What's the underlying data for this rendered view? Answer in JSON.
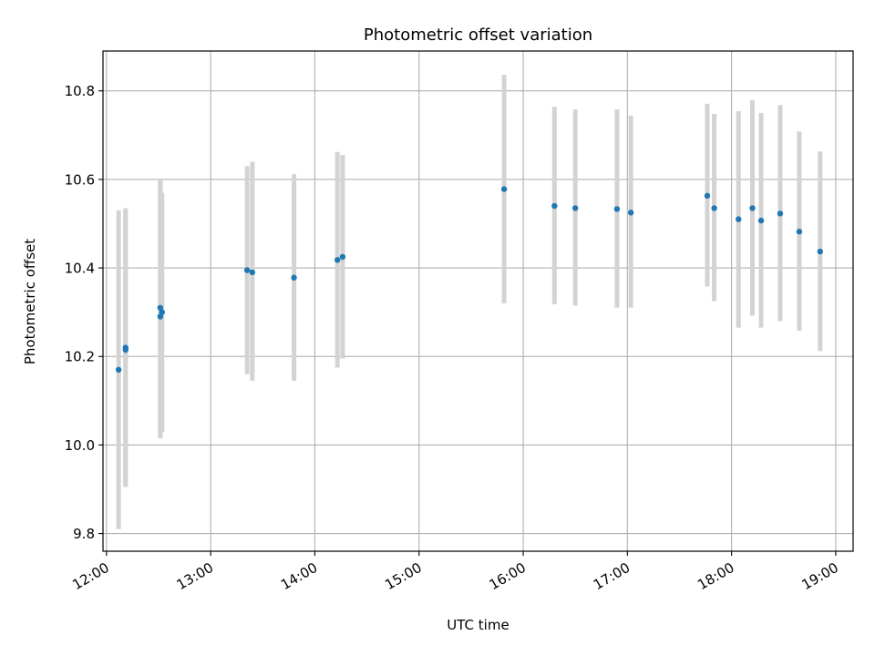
{
  "chart_data": {
    "type": "scatter",
    "title": "Photometric offset variation",
    "xlabel": "UTC time",
    "ylabel": "Photometric offset",
    "x_tick_labels": [
      "12:00",
      "13:00",
      "14:00",
      "15:00",
      "16:00",
      "17:00",
      "18:00",
      "19:00"
    ],
    "y_tick_labels": [
      "9.8",
      "10.0",
      "10.2",
      "10.4",
      "10.6",
      "10.8"
    ],
    "y_ticks": [
      9.8,
      10.0,
      10.2,
      10.4,
      10.6,
      10.8
    ],
    "xlim": [
      "11:58",
      "19:10"
    ],
    "ylim": [
      9.76,
      10.89
    ],
    "grid": true,
    "colors": {
      "points": "#1f77b4",
      "error_bars": "#d3d3d3",
      "grid": "#b0b0b0"
    },
    "series": [
      {
        "points": [
          {
            "x": "12:07",
            "y": 10.17,
            "ylow": 9.81,
            "yhigh": 10.53
          },
          {
            "x": "12:11",
            "y": 10.22,
            "ylow": 9.905,
            "yhigh": 10.535
          },
          {
            "x": "12:11",
            "y": 10.215,
            "ylow": 9.91,
            "yhigh": 10.53
          },
          {
            "x": "12:31",
            "y": 10.29,
            "ylow": 10.015,
            "yhigh": 10.6
          },
          {
            "x": "12:31",
            "y": 10.31,
            "ylow": 10.02,
            "yhigh": 10.595
          },
          {
            "x": "12:32",
            "y": 10.3,
            "ylow": 10.03,
            "yhigh": 10.57
          },
          {
            "x": "13:21",
            "y": 10.395,
            "ylow": 10.16,
            "yhigh": 10.63
          },
          {
            "x": "13:24",
            "y": 10.39,
            "ylow": 10.145,
            "yhigh": 10.64
          },
          {
            "x": "13:48",
            "y": 10.378,
            "ylow": 10.145,
            "yhigh": 10.612
          },
          {
            "x": "14:13",
            "y": 10.418,
            "ylow": 10.175,
            "yhigh": 10.662
          },
          {
            "x": "14:16",
            "y": 10.425,
            "ylow": 10.195,
            "yhigh": 10.655
          },
          {
            "x": "15:49",
            "y": 10.578,
            "ylow": 10.32,
            "yhigh": 10.836
          },
          {
            "x": "16:18",
            "y": 10.54,
            "ylow": 10.318,
            "yhigh": 10.764
          },
          {
            "x": "16:30",
            "y": 10.535,
            "ylow": 10.315,
            "yhigh": 10.758
          },
          {
            "x": "16:54",
            "y": 10.533,
            "ylow": 10.31,
            "yhigh": 10.758
          },
          {
            "x": "17:02",
            "y": 10.525,
            "ylow": 10.31,
            "yhigh": 10.744
          },
          {
            "x": "17:46",
            "y": 10.563,
            "ylow": 10.358,
            "yhigh": 10.771
          },
          {
            "x": "17:50",
            "y": 10.535,
            "ylow": 10.325,
            "yhigh": 10.748
          },
          {
            "x": "18:04",
            "y": 10.51,
            "ylow": 10.265,
            "yhigh": 10.754
          },
          {
            "x": "18:12",
            "y": 10.535,
            "ylow": 10.292,
            "yhigh": 10.779
          },
          {
            "x": "18:17",
            "y": 10.507,
            "ylow": 10.265,
            "yhigh": 10.75
          },
          {
            "x": "18:28",
            "y": 10.523,
            "ylow": 10.28,
            "yhigh": 10.768
          },
          {
            "x": "18:39",
            "y": 10.482,
            "ylow": 10.258,
            "yhigh": 10.708
          },
          {
            "x": "18:51",
            "y": 10.437,
            "ylow": 10.212,
            "yhigh": 10.663
          }
        ]
      }
    ]
  }
}
